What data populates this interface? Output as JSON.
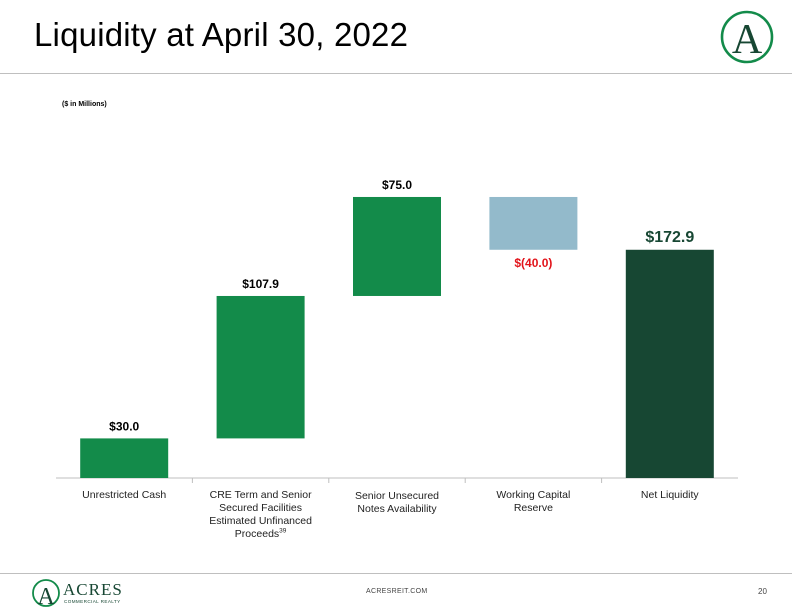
{
  "header": {
    "title": "Liquidity at April 30, 2022",
    "units_note": "($ in Millions)"
  },
  "brand": {
    "logo_letter": "A",
    "logo_name": "ACRES",
    "logo_tagline": "COMMERCIAL REALTY",
    "green": "#138b4a",
    "dark_green": "#174733"
  },
  "chart_data": {
    "type": "bar",
    "subtype": "waterfall",
    "categories": [
      "Unrestricted Cash",
      "CRE Term and Senior Secured Facilities Estimated Unfinanced Proceeds",
      "Senior Unsecured Notes Availability",
      "Working Capital Reserve",
      "Net Liquidity"
    ],
    "category_footnote": "39",
    "values": [
      30.0,
      107.9,
      75.0,
      -40.0,
      172.9
    ],
    "value_labels": [
      "$30.0",
      "$107.9",
      "$75.0",
      "$(40.0)",
      "$172.9"
    ],
    "bar_kind": [
      "increase",
      "increase",
      "increase",
      "decrease",
      "total"
    ],
    "colors": {
      "increase": "#138b4a",
      "decrease": "#93bacb",
      "total": "#174733",
      "negative_label": "#e2131a"
    },
    "title": "Liquidity at April 30, 2022",
    "xlabel": "",
    "ylabel": "",
    "ylim": [
      0,
      220
    ],
    "grid": false,
    "legend": "none"
  },
  "footer": {
    "website": "ACRESREIT.COM",
    "page_number": "20"
  }
}
